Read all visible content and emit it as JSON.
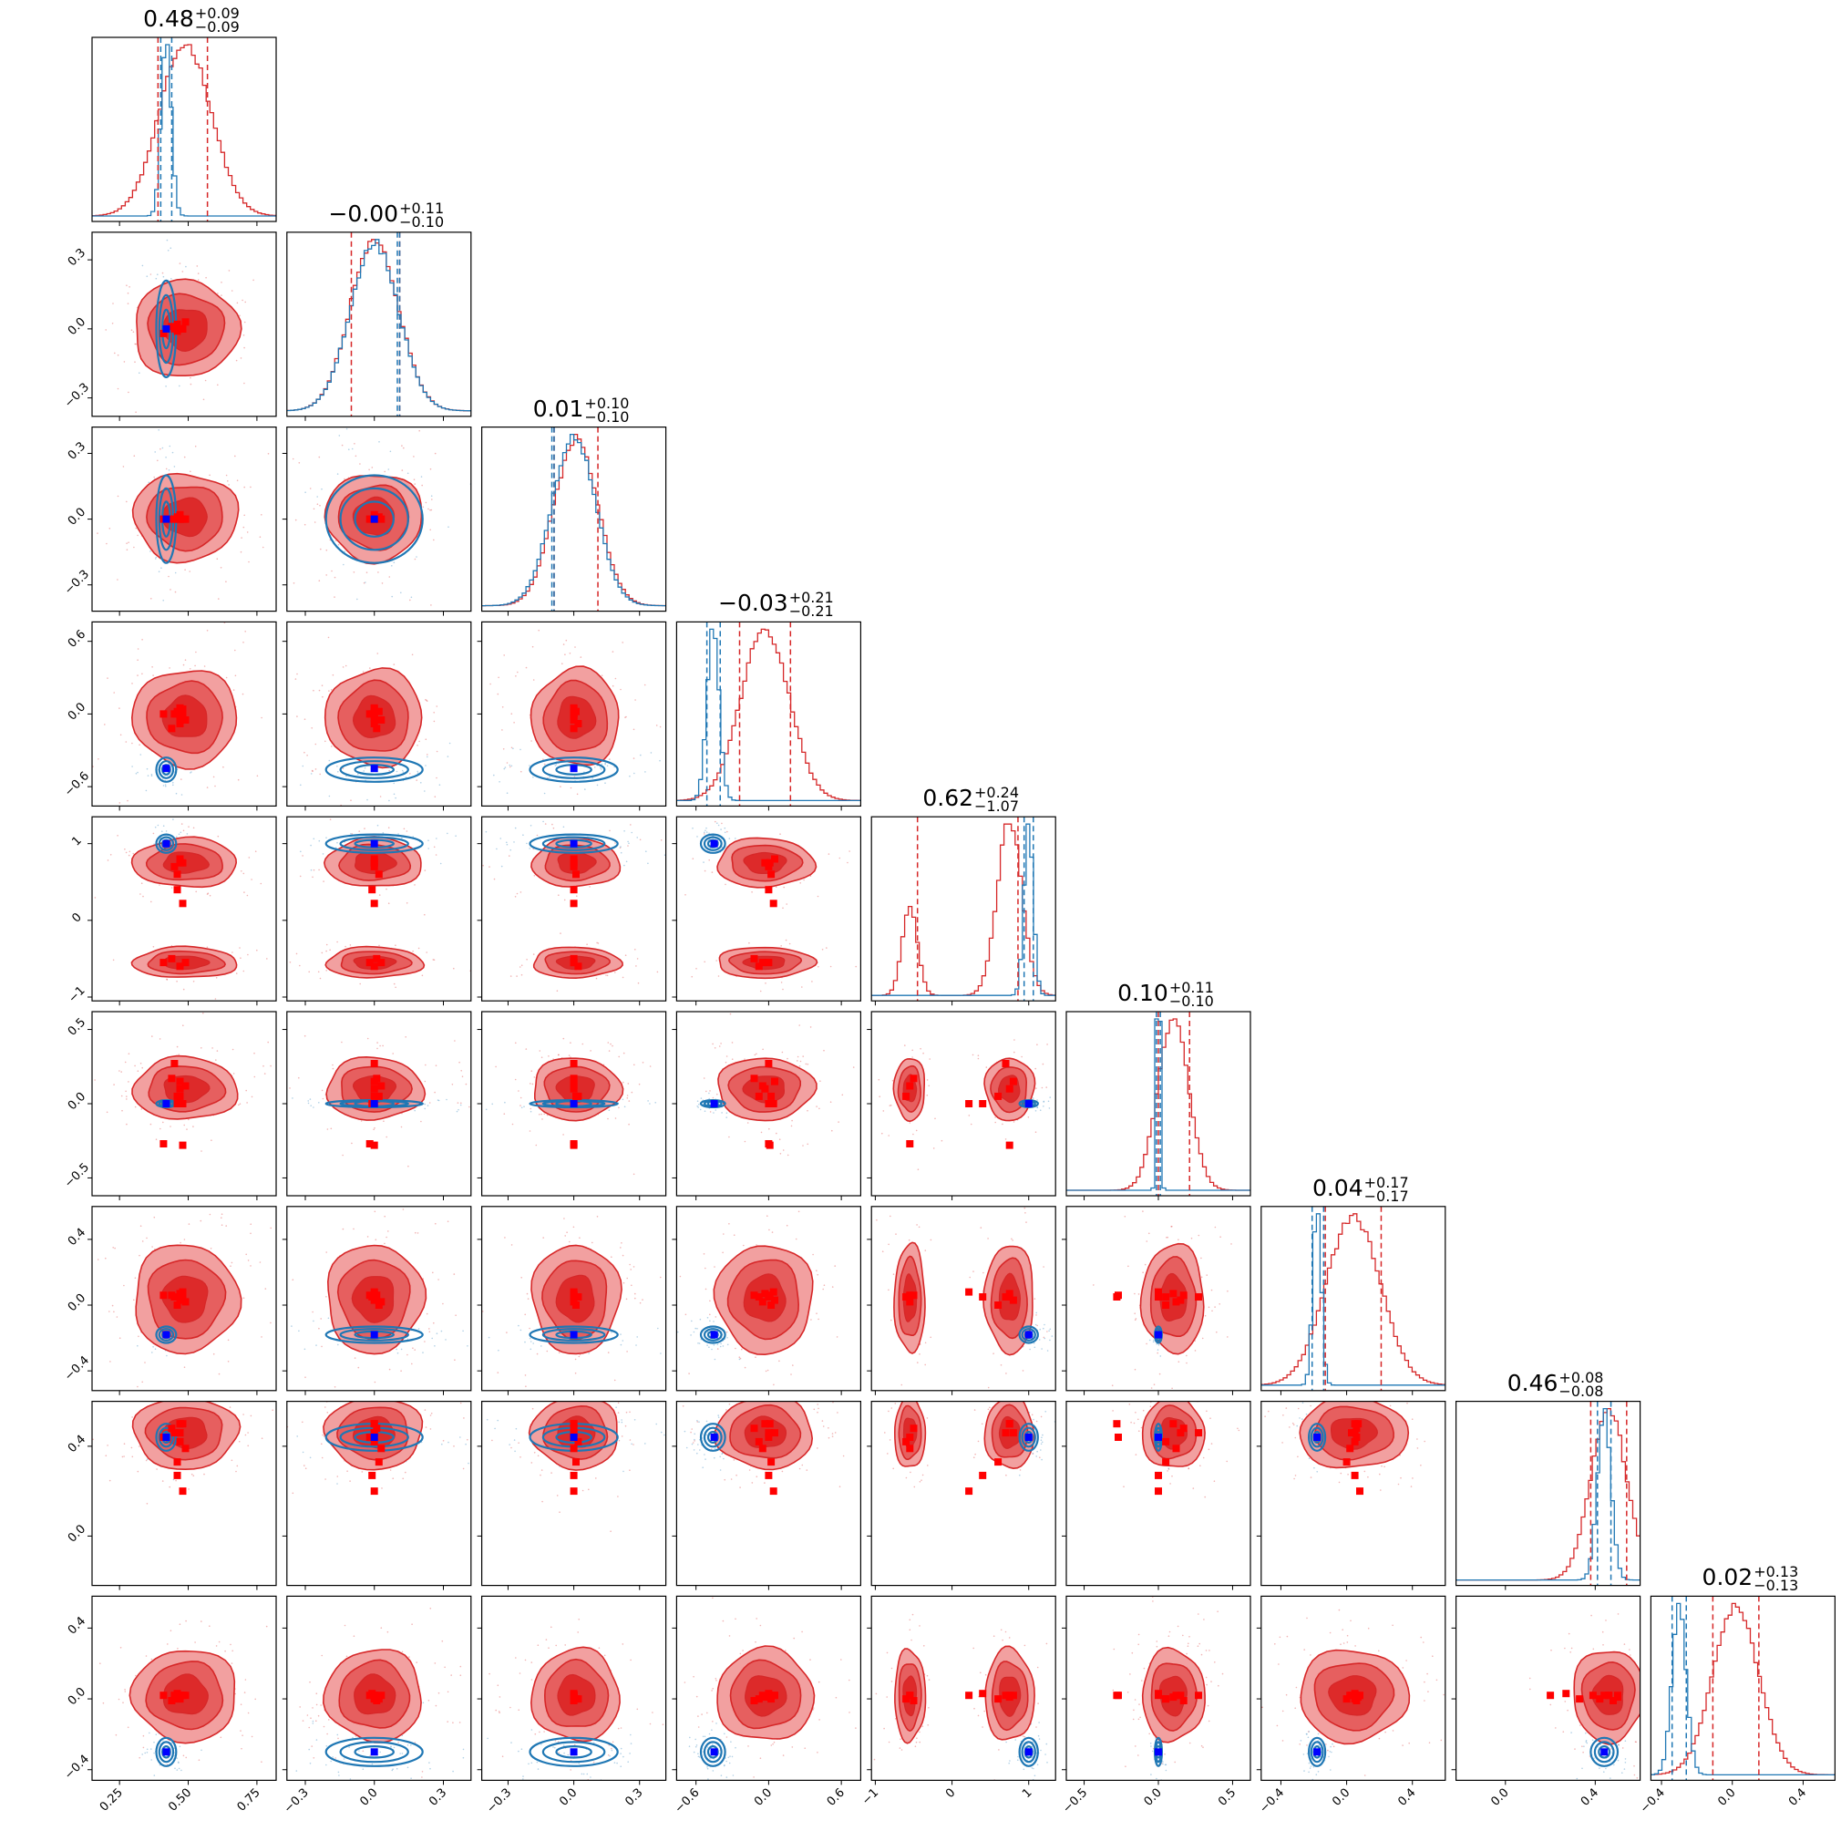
{
  "colors": {
    "posterior": "#d62728",
    "posterior_fill_outer": "#f2a0a0",
    "posterior_fill_inner": "#dd2a2a",
    "reference": "#1f77b4",
    "truth_marker": "#0000ff",
    "posterior_marker": "#ff0000",
    "axes": "#000000",
    "background": "#ffffff"
  },
  "chart_data": {
    "type": "corner",
    "n_params": 9,
    "grid": false,
    "legend": "none",
    "titles": [
      {
        "median": "0.48",
        "plus": "+0.09",
        "minus": "−0.09"
      },
      {
        "median": "−0.00",
        "plus": "+0.11",
        "minus": "−0.10"
      },
      {
        "median": "0.01",
        "plus": "+0.10",
        "minus": "−0.10"
      },
      {
        "median": "−0.03",
        "plus": "+0.21",
        "minus": "−0.21"
      },
      {
        "median": "0.62",
        "plus": "+0.24",
        "minus": "−1.07"
      },
      {
        "median": "0.10",
        "plus": "+0.11",
        "minus": "−0.10"
      },
      {
        "median": "0.04",
        "plus": "+0.17",
        "minus": "−0.17"
      },
      {
        "median": "0.46",
        "plus": "+0.08",
        "minus": "−0.08"
      },
      {
        "median": "0.02",
        "plus": "+0.13",
        "minus": "−0.13"
      }
    ],
    "ranges": [
      [
        0.15,
        0.82
      ],
      [
        -0.38,
        0.42
      ],
      [
        -0.42,
        0.42
      ],
      [
        -0.76,
        0.76
      ],
      [
        -1.05,
        1.35
      ],
      [
        -0.62,
        0.62
      ],
      [
        -0.52,
        0.6
      ],
      [
        -0.22,
        0.6
      ],
      [
        -0.46,
        0.58
      ]
    ],
    "x_ticks": [
      {
        "values": [
          0.25,
          0.5,
          0.75
        ],
        "labels": [
          "0.25",
          "0.50",
          "0.75"
        ]
      },
      {
        "values": [
          -0.3,
          0.0,
          0.3
        ],
        "labels": [
          "−0.3",
          "0.0",
          "0.3"
        ]
      },
      {
        "values": [
          -0.3,
          0.0,
          0.3
        ],
        "labels": [
          "−0.3",
          "0.0",
          "0.3"
        ]
      },
      {
        "values": [
          -0.6,
          0.0,
          0.6
        ],
        "labels": [
          "−0.6",
          "0.0",
          "0.6"
        ]
      },
      {
        "values": [
          -1,
          0,
          1
        ],
        "labels": [
          "−1",
          "0",
          "1"
        ]
      },
      {
        "values": [
          -0.5,
          0.0,
          0.5
        ],
        "labels": [
          "−0.5",
          "0.0",
          "0.5"
        ]
      },
      {
        "values": [
          -0.4,
          0.0,
          0.4
        ],
        "labels": [
          "−0.4",
          "0.0",
          "0.4"
        ]
      },
      {
        "values": [
          0.0,
          0.4
        ],
        "labels": [
          "0.0",
          "0.4"
        ]
      },
      {
        "values": [
          -0.4,
          0.0,
          0.4
        ],
        "labels": [
          "−0.4",
          "0.0",
          "0.4"
        ]
      }
    ],
    "y_ticks": [
      null,
      {
        "values": [
          -0.3,
          0.0,
          0.3
        ],
        "labels": [
          "−0.3",
          "0.0",
          "0.3"
        ]
      },
      {
        "values": [
          -0.3,
          0.0,
          0.3
        ],
        "labels": [
          "−0.3",
          "0.0",
          "0.3"
        ]
      },
      {
        "values": [
          -0.6,
          0.0,
          0.6
        ],
        "labels": [
          "−0.6",
          "0.0",
          "0.6"
        ]
      },
      {
        "values": [
          -1,
          0,
          1
        ],
        "labels": [
          "−1",
          "0",
          "1"
        ]
      },
      {
        "values": [
          -0.5,
          0.0,
          0.5
        ],
        "labels": [
          "−0.5",
          "0.0",
          "0.5"
        ]
      },
      {
        "values": [
          -0.4,
          0.0,
          0.4
        ],
        "labels": [
          "−0.4",
          "0.0",
          "0.4"
        ]
      },
      {
        "values": [
          0.0,
          0.4
        ],
        "labels": [
          "0.0",
          "0.4"
        ]
      },
      {
        "values": [
          -0.4,
          0.0,
          0.4
        ],
        "labels": [
          "−0.4",
          "0.0",
          "0.4"
        ]
      }
    ],
    "posterior_hist": [
      {
        "mean": 0.49,
        "sd": 0.095
      },
      {
        "mean": 0.0,
        "sd": 0.105
      },
      {
        "mean": 0.01,
        "sd": 0.1
      },
      {
        "mean": -0.03,
        "sd": 0.2
      },
      {
        "modes": [
          {
            "mean": 0.75,
            "sd": 0.16,
            "weight": 0.76
          },
          {
            "mean": -0.55,
            "sd": 0.1,
            "weight": 0.24
          }
        ]
      },
      {
        "mean": 0.1,
        "sd": 0.105
      },
      {
        "mean": 0.04,
        "sd": 0.165
      },
      {
        "mean": 0.46,
        "sd": 0.08
      },
      {
        "mean": 0.02,
        "sd": 0.13
      }
    ],
    "posterior_quantiles": [
      [
        0.39,
        0.57
      ],
      [
        -0.1,
        0.11
      ],
      [
        -0.09,
        0.11
      ],
      [
        -0.24,
        0.18
      ],
      [
        -0.45,
        0.86
      ],
      [
        0.0,
        0.21
      ],
      [
        -0.13,
        0.21
      ],
      [
        0.38,
        0.54
      ],
      [
        -0.11,
        0.15
      ]
    ],
    "reference_hist": [
      {
        "mean": 0.42,
        "sd": 0.018
      },
      {
        "mean": 0.0,
        "sd": 0.105
      },
      {
        "mean": 0.0,
        "sd": 0.1
      },
      {
        "mean": -0.46,
        "sd": 0.05
      },
      {
        "mean": 1.0,
        "sd": 0.06
      },
      {
        "mean": 0.0,
        "sd": 0.012
      },
      {
        "mean": -0.18,
        "sd": 0.025
      },
      {
        "mean": 0.44,
        "sd": 0.03
      },
      {
        "mean": -0.3,
        "sd": 0.04
      }
    ],
    "reference_quantiles": [
      [
        0.4,
        0.44
      ],
      [
        0.1,
        0.11
      ],
      [
        -0.1,
        -0.09
      ],
      [
        -0.51,
        -0.4
      ],
      [
        0.94,
        1.06
      ],
      [
        -0.013,
        0.013
      ],
      [
        -0.21,
        -0.14
      ],
      [
        0.41,
        0.47
      ],
      [
        -0.34,
        -0.26
      ]
    ],
    "truth": [
      0.42,
      0.0,
      0.0,
      -0.45,
      1.0,
      0.0,
      -0.18,
      0.44,
      -0.3
    ],
    "posterior_markers": [
      [
        0.45,
        0.47,
        0.47,
        0.46,
        0.46,
        0.48,
        0.49,
        0.44,
        0.47,
        0.41,
        0.48
      ],
      [
        0.0,
        0.0,
        0.0,
        0.02,
        -0.01,
        0.0,
        0.03,
        0.01,
        0.0,
        -0.02,
        0.0
      ],
      [
        0.0,
        0.0,
        0.0,
        0.01,
        0.0,
        0.0,
        0.0,
        0.0,
        0.02,
        0.0,
        0.0
      ],
      [
        0.0,
        0.05,
        -0.03,
        0.02,
        0.0,
        0.04,
        -0.05,
        -0.12,
        -0.08,
        0.0,
        0.01
      ],
      [
        0.7,
        0.8,
        0.75,
        0.6,
        0.4,
        0.22,
        -0.55,
        -0.5,
        -0.6,
        -0.55,
        0.75
      ],
      [
        0.27,
        0.15,
        0.1,
        0.05,
        0.0,
        0.0,
        0.12,
        0.17,
        0.05,
        -0.27,
        -0.28
      ],
      [
        0.05,
        0.03,
        0.07,
        0.0,
        0.05,
        0.08,
        0.02,
        0.06,
        0.05,
        0.06,
        0.05
      ],
      [
        0.46,
        0.46,
        0.5,
        0.33,
        0.27,
        0.2,
        0.39,
        0.48,
        0.42,
        0.44,
        0.5
      ],
      [
        0.02,
        0.02,
        0.01,
        0.0,
        0.03,
        0.02,
        0.02,
        -0.01,
        0.0,
        0.02,
        0.02
      ]
    ]
  }
}
